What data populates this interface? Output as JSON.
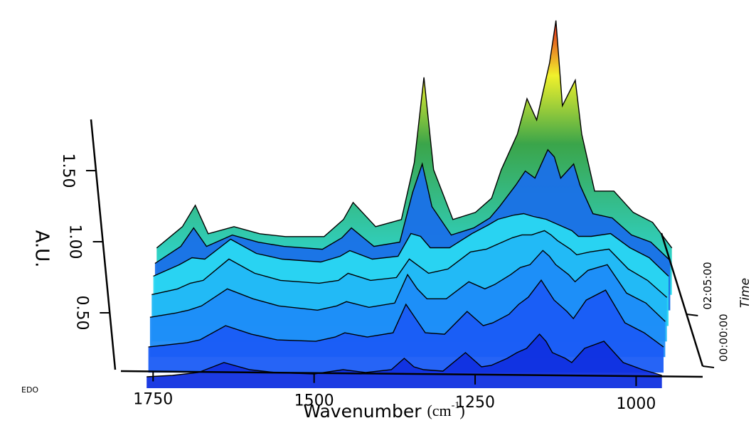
{
  "chart_data": {
    "type": "waterfall",
    "xlabel": "Wavenumber",
    "xunit": [
      "(cm",
      "-1",
      ")"
    ],
    "ylabel": "A.U.",
    "zlabel": "Time",
    "note": "EDO",
    "xlim": [
      1800,
      900
    ],
    "xticks": [
      1750,
      1500,
      1250,
      1000
    ],
    "ylim": [
      0,
      2
    ],
    "yticks": [
      {
        "value": 0.5,
        "label": "0.50"
      },
      {
        "value": 1.0,
        "label": "1.00"
      },
      {
        "value": 1.5,
        "label": "1.50"
      }
    ],
    "zlim": [
      0,
      320
    ],
    "zticks": [
      {
        "value": 0,
        "label": "00:00:00"
      },
      {
        "value": 125,
        "label": "02:05:00"
      }
    ],
    "x": [
      1760,
      1720,
      1700,
      1680,
      1640,
      1600,
      1560,
      1500,
      1470,
      1455,
      1420,
      1380,
      1360,
      1345,
      1330,
      1300,
      1265,
      1240,
      1225,
      1200,
      1185,
      1170,
      1150,
      1140,
      1130,
      1110,
      1100,
      1080,
      1050,
      1020,
      990,
      960
    ],
    "series": [
      {
        "z": 0,
        "color": "#1030e0",
        "values": [
          0.05,
          0.06,
          0.07,
          0.08,
          0.15,
          0.1,
          0.08,
          0.07,
          0.09,
          0.1,
          0.08,
          0.1,
          0.18,
          0.12,
          0.1,
          0.09,
          0.22,
          0.12,
          0.13,
          0.18,
          0.22,
          0.25,
          0.35,
          0.3,
          0.22,
          0.18,
          0.15,
          0.25,
          0.3,
          0.15,
          0.1,
          0.06
        ]
      },
      {
        "z": 50,
        "color": "#1a5cf5",
        "values": [
          0.15,
          0.17,
          0.18,
          0.2,
          0.3,
          0.24,
          0.2,
          0.19,
          0.22,
          0.25,
          0.22,
          0.25,
          0.45,
          0.35,
          0.25,
          0.24,
          0.4,
          0.3,
          0.32,
          0.38,
          0.45,
          0.5,
          0.62,
          0.55,
          0.48,
          0.4,
          0.35,
          0.48,
          0.55,
          0.32,
          0.25,
          0.15
        ]
      },
      {
        "z": 100,
        "color": "#1e8cf8",
        "values": [
          0.25,
          0.28,
          0.3,
          0.33,
          0.45,
          0.38,
          0.33,
          0.3,
          0.33,
          0.36,
          0.32,
          0.35,
          0.55,
          0.45,
          0.38,
          0.38,
          0.5,
          0.45,
          0.48,
          0.55,
          0.6,
          0.62,
          0.72,
          0.68,
          0.62,
          0.55,
          0.5,
          0.58,
          0.62,
          0.42,
          0.35,
          0.22
        ]
      },
      {
        "z": 150,
        "color": "#22b8f5",
        "values": [
          0.3,
          0.34,
          0.38,
          0.4,
          0.55,
          0.45,
          0.4,
          0.38,
          0.4,
          0.45,
          0.4,
          0.42,
          0.55,
          0.5,
          0.45,
          0.48,
          0.6,
          0.62,
          0.65,
          0.7,
          0.72,
          0.72,
          0.75,
          0.72,
          0.68,
          0.62,
          0.58,
          0.6,
          0.62,
          0.48,
          0.4,
          0.28
        ]
      },
      {
        "z": 200,
        "color": "#2ad8f2",
        "values": [
          0.32,
          0.4,
          0.45,
          0.44,
          0.58,
          0.48,
          0.44,
          0.42,
          0.46,
          0.5,
          0.44,
          0.46,
          0.62,
          0.6,
          0.52,
          0.52,
          0.62,
          0.68,
          0.72,
          0.75,
          0.76,
          0.74,
          0.72,
          0.7,
          0.68,
          0.64,
          0.6,
          0.6,
          0.62,
          0.52,
          0.45,
          0.32
        ]
      },
      {
        "z": 250,
        "color": "#1a70e8",
        "values": [
          0.3,
          0.42,
          0.55,
          0.42,
          0.5,
          0.45,
          0.42,
          0.4,
          0.48,
          0.55,
          0.42,
          0.45,
          0.8,
          1.0,
          0.7,
          0.5,
          0.55,
          0.62,
          0.7,
          0.85,
          0.95,
          0.9,
          1.1,
          1.05,
          0.9,
          1.0,
          0.85,
          0.65,
          0.62,
          0.5,
          0.45,
          0.32
        ]
      },
      {
        "z": 300,
        "color": "#2038e0",
        "values": [
          0.3,
          0.45,
          0.6,
          0.4,
          0.45,
          0.4,
          0.38,
          0.38,
          0.5,
          0.62,
          0.45,
          0.5,
          0.9,
          1.5,
          0.85,
          0.5,
          0.55,
          0.65,
          0.85,
          1.1,
          1.35,
          1.2,
          1.6,
          1.9,
          1.3,
          1.48,
          1.1,
          0.7,
          0.7,
          0.55,
          0.48,
          0.3
        ]
      }
    ]
  }
}
